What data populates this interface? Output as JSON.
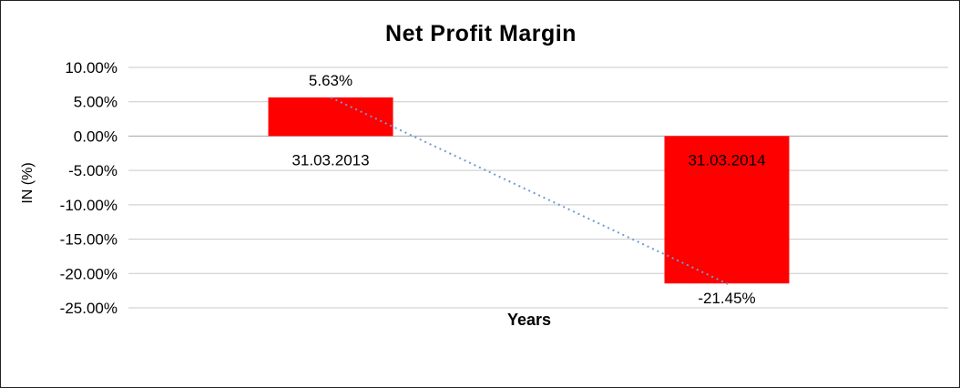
{
  "chart": {
    "title": "Net Profit Margin",
    "xlabel": "Years",
    "ylabel": "IN (%)"
  },
  "chart_data": {
    "type": "bar",
    "title": "Net Profit Margin",
    "xlabel": "Years",
    "ylabel": "IN (%)",
    "categories": [
      "31.03.2013",
      "31.03.2014"
    ],
    "values": [
      5.63,
      -21.45
    ],
    "value_labels": [
      "5.63%",
      "-21.45%"
    ],
    "ytick_labels": [
      "10.00%",
      "5.00%",
      "0.00%",
      "-5.00%",
      "-10.00%",
      "-15.00%",
      "-20.00%",
      "-25.00%"
    ],
    "ylim": [
      -25,
      10
    ],
    "ytick_step": 5,
    "grid": true,
    "legend": false,
    "bar_color": "#ff0000",
    "gridline_color": "#c9c9c9",
    "zero_line_color": "#a6a6a6",
    "trendline": {
      "type": "linear",
      "style": "dotted",
      "color": "#6f9bd1"
    }
  }
}
